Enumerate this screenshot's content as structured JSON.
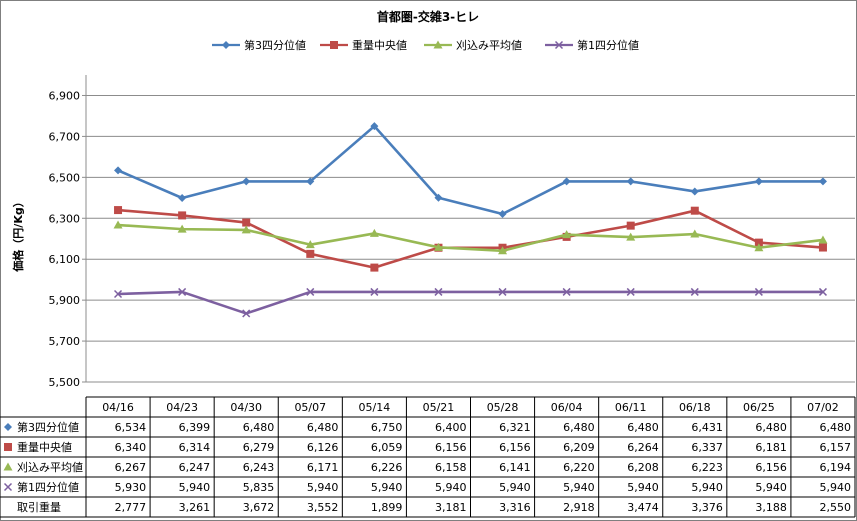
{
  "chart_data": {
    "type": "line",
    "title": "首都圏-交雑3-ヒレ",
    "ylabel": "価格（円/Kg）",
    "xlabel": "",
    "ylim": [
      5500,
      7000
    ],
    "yticks": [
      5500,
      5700,
      5900,
      6100,
      6300,
      6500,
      6700,
      6900
    ],
    "ytick_labels": [
      "5,500",
      "5,700",
      "5,900",
      "6,100",
      "6,300",
      "6,500",
      "6,700",
      "6,900"
    ],
    "grid": true,
    "legend_position": "top",
    "categories": [
      "04/16",
      "04/23",
      "04/30",
      "05/07",
      "05/14",
      "05/21",
      "05/28",
      "06/04",
      "06/11",
      "06/18",
      "06/25",
      "07/02"
    ],
    "series": [
      {
        "name": "第3四分位値",
        "color": "#4a7ebb",
        "marker": "diamond",
        "values": [
          6534,
          6399,
          6480,
          6480,
          6750,
          6400,
          6321,
          6480,
          6480,
          6431,
          6480,
          6480
        ],
        "labels": [
          "6,534",
          "6,399",
          "6,480",
          "6,480",
          "6,750",
          "6,400",
          "6,321",
          "6,480",
          "6,480",
          "6,431",
          "6,480",
          "6,480"
        ]
      },
      {
        "name": "重量中央値",
        "color": "#be4b48",
        "marker": "square",
        "values": [
          6340,
          6314,
          6279,
          6126,
          6059,
          6156,
          6156,
          6209,
          6264,
          6337,
          6181,
          6157
        ],
        "labels": [
          "6,340",
          "6,314",
          "6,279",
          "6,126",
          "6,059",
          "6,156",
          "6,156",
          "6,209",
          "6,264",
          "6,337",
          "6,181",
          "6,157"
        ]
      },
      {
        "name": "刈込み平均値",
        "color": "#98b954",
        "marker": "triangle",
        "values": [
          6267,
          6247,
          6243,
          6171,
          6226,
          6158,
          6141,
          6220,
          6208,
          6223,
          6156,
          6194
        ],
        "labels": [
          "6,267",
          "6,247",
          "6,243",
          "6,171",
          "6,226",
          "6,158",
          "6,141",
          "6,220",
          "6,208",
          "6,223",
          "6,156",
          "6,194"
        ]
      },
      {
        "name": "第1四分位値",
        "color": "#7d60a0",
        "marker": "x",
        "values": [
          5930,
          5940,
          5835,
          5940,
          5940,
          5940,
          5940,
          5940,
          5940,
          5940,
          5940,
          5940
        ],
        "labels": [
          "5,930",
          "5,940",
          "5,835",
          "5,940",
          "5,940",
          "5,940",
          "5,940",
          "5,940",
          "5,940",
          "5,940",
          "5,940",
          "5,940"
        ]
      }
    ],
    "table_extra_rows": [
      {
        "name": "取引重量",
        "values": [
          2777,
          3261,
          3672,
          3552,
          1899,
          3181,
          3316,
          2918,
          3474,
          3376,
          3188,
          2550
        ],
        "labels": [
          "2,777",
          "3,261",
          "3,672",
          "3,552",
          "1,899",
          "3,181",
          "3,316",
          "2,918",
          "3,474",
          "3,376",
          "3,188",
          "2,550"
        ]
      }
    ]
  }
}
